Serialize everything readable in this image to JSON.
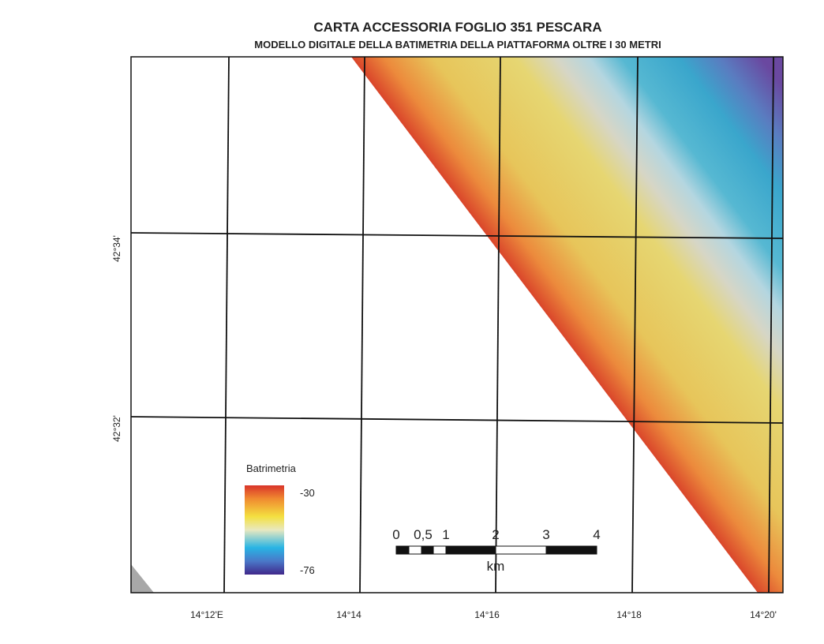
{
  "header": {
    "title": "CARTA ACCESSORIA FOGLIO 351 PESCARA",
    "subtitle": "MODELLO DIGITALE DELLA BATIMETRIA DELLA PIATTAFORMA OLTRE I 30 METRI"
  },
  "map": {
    "latitude_labels": [
      "42°34'",
      "42°32'"
    ],
    "longitude_labels": [
      "14°12'E",
      "14°14",
      "14°16",
      "14°18",
      "14°20'"
    ]
  },
  "legend": {
    "title": "Batrimetria",
    "max_label": "-30",
    "min_label": "-76"
  },
  "scale_bar": {
    "labels": [
      "0",
      "0,5",
      "1",
      "2",
      "3",
      "4"
    ],
    "unit": "km"
  }
}
